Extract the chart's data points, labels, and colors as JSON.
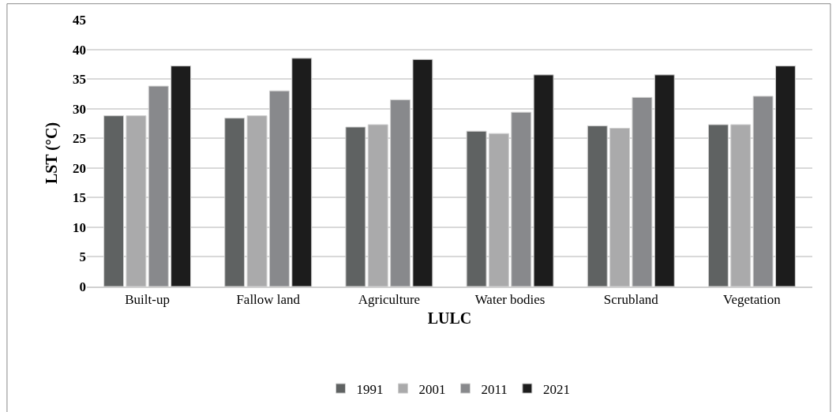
{
  "chart_data": {
    "type": "bar",
    "xlabel": "LULC",
    "ylabel": "LST (°C)",
    "categories": [
      "Built-up",
      "Fallow land",
      "Agriculture",
      "Water bodies",
      "Scrubland",
      "Vegetation"
    ],
    "series": [
      {
        "name": "1991",
        "color": "#5f6262",
        "values": [
          28.8,
          28.4,
          26.9,
          26.2,
          27.1,
          27.3
        ]
      },
      {
        "name": "2001",
        "color": "#aaaaab",
        "values": [
          28.8,
          28.8,
          27.3,
          25.8,
          26.7,
          27.3
        ]
      },
      {
        "name": "2011",
        "color": "#88898c",
        "values": [
          33.8,
          33.0,
          31.5,
          29.4,
          31.9,
          32.1
        ]
      },
      {
        "name": "2021",
        "color": "#1c1c1c",
        "values": [
          37.2,
          38.5,
          38.3,
          35.7,
          35.7,
          37.2
        ]
      }
    ],
    "ylim": [
      0,
      45
    ],
    "yticks": [
      0,
      5,
      10,
      15,
      20,
      25,
      30,
      35,
      40,
      45
    ],
    "grid": "y",
    "legend": "bottom"
  }
}
